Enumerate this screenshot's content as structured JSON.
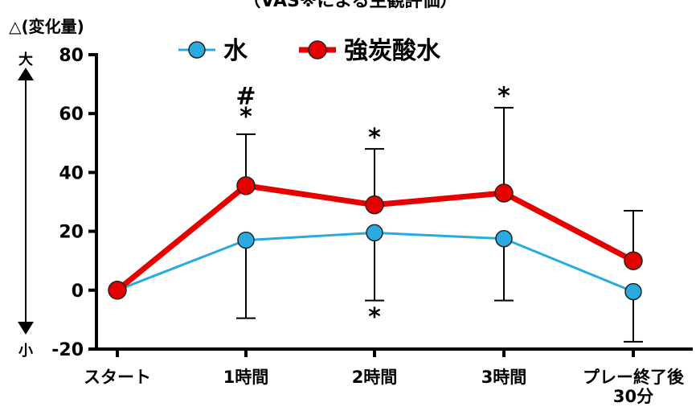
{
  "chart_data": {
    "type": "line",
    "title": "（VAS※による主観評価）",
    "ylabel": "△(変化量)",
    "y_direction_labels": {
      "top": "大",
      "bottom": "小"
    },
    "ylim": [
      -20,
      80
    ],
    "yticks": [
      80,
      60,
      40,
      20,
      0,
      -20
    ],
    "categories": [
      "スタート",
      "1時間",
      "2時間",
      "3時間",
      "プレー終了後\n30分"
    ],
    "series": [
      {
        "name": "水",
        "color": "#29abe2",
        "values": [
          0,
          17,
          19.5,
          17.5,
          -0.5
        ],
        "error_low": [
          null,
          -9.5,
          -3.5,
          -3.5,
          -17.5
        ]
      },
      {
        "name": "強炭酸水",
        "color": "#e60000",
        "values": [
          0,
          35.5,
          29,
          33,
          10
        ],
        "error_high": [
          null,
          53,
          48,
          62,
          27
        ]
      }
    ],
    "annotations": [
      {
        "category_index": 1,
        "y": 60,
        "text": "*"
      },
      {
        "category_index": 1,
        "y": 67,
        "text": "#"
      },
      {
        "category_index": 2,
        "y": 53,
        "text": "*"
      },
      {
        "category_index": 2,
        "y": -8,
        "text": "*"
      },
      {
        "category_index": 3,
        "y": 67,
        "text": "*"
      }
    ],
    "legend_position": "top",
    "grid": false
  }
}
